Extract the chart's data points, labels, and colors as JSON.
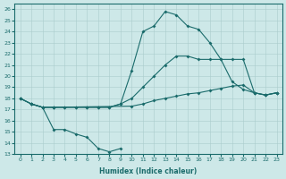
{
  "xlabel": "Humidex (Indice chaleur)",
  "xlim": [
    -0.5,
    23.5
  ],
  "ylim": [
    13,
    26.5
  ],
  "xticks": [
    0,
    1,
    2,
    3,
    4,
    5,
    6,
    7,
    8,
    9,
    10,
    11,
    12,
    13,
    14,
    15,
    16,
    17,
    18,
    19,
    20,
    21,
    22,
    23
  ],
  "yticks": [
    13,
    14,
    15,
    16,
    17,
    18,
    19,
    20,
    21,
    22,
    23,
    24,
    25,
    26
  ],
  "bg_color": "#cde8e8",
  "line_color": "#1a6b6b",
  "grid_color": "#aacccc",
  "line1_x": [
    0,
    1,
    2,
    3,
    4,
    5,
    6,
    7,
    8,
    9,
    10,
    11,
    12,
    13,
    14,
    15,
    16,
    17,
    18,
    19,
    20,
    21,
    22,
    23
  ],
  "line1_y": [
    18,
    17.5,
    17.2,
    17.2,
    17.2,
    17.2,
    17.2,
    17.2,
    17.2,
    17.5,
    18.0,
    19.0,
    20.0,
    21.0,
    21.8,
    21.8,
    21.5,
    21.5,
    21.5,
    21.5,
    21.5,
    18.5,
    18.3,
    18.5
  ],
  "line2_x": [
    0,
    1,
    2,
    3,
    10,
    11,
    12,
    13,
    14,
    15,
    16,
    17,
    18,
    19,
    20,
    21,
    22,
    23
  ],
  "line2_y": [
    18,
    17.5,
    17.2,
    17.2,
    17.3,
    17.5,
    17.8,
    18.0,
    18.2,
    18.4,
    18.5,
    18.7,
    18.9,
    19.1,
    19.2,
    18.5,
    18.3,
    18.5
  ],
  "line3_x": [
    0,
    1,
    2,
    3,
    4,
    5,
    6,
    7,
    8,
    9,
    10,
    11,
    12,
    13,
    14,
    15,
    16,
    17,
    18,
    19,
    20,
    21,
    22,
    23
  ],
  "line3_y": [
    18,
    17.5,
    17.2,
    17.2,
    17.2,
    17.2,
    17.2,
    17.2,
    17.2,
    17.5,
    20.5,
    24.0,
    24.5,
    25.8,
    25.5,
    24.5,
    24.2,
    23.0,
    21.5,
    19.5,
    18.8,
    18.5,
    18.3,
    18.5
  ],
  "line4_x": [
    1,
    2,
    3,
    4,
    5,
    6,
    7,
    8,
    9
  ],
  "line4_y": [
    17.5,
    17.2,
    15.2,
    15.2,
    14.8,
    14.5,
    13.5,
    13.2,
    13.5
  ]
}
